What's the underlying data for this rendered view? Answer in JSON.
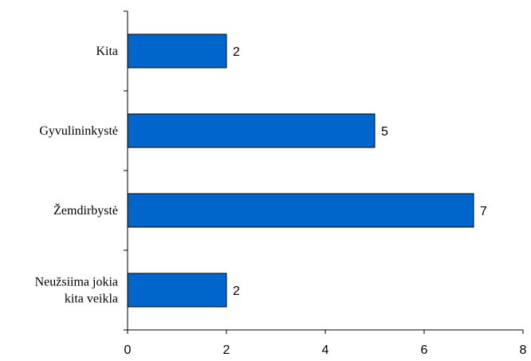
{
  "chart_data": {
    "type": "bar",
    "orientation": "horizontal",
    "categories": [
      "Kita",
      "Gyvulininkystė",
      "Žemdirbystė",
      "Neužsiima jokia kita veikla"
    ],
    "category_lines": [
      [
        "Kita"
      ],
      [
        "Gyvulininkystė"
      ],
      [
        "Žemdirbystė"
      ],
      [
        "Neužsiima jokia",
        "kita veikla"
      ]
    ],
    "values": [
      2,
      5,
      7,
      2
    ],
    "data_labels": [
      "2",
      "5",
      "7",
      "2"
    ],
    "x_ticks": [
      0,
      2,
      4,
      6,
      8
    ],
    "x_tick_labels": [
      "0",
      "2",
      "4",
      "6",
      "8"
    ],
    "xlim": [
      0,
      8
    ],
    "bar_color": "#0066CC",
    "grid": false,
    "legend": "none"
  }
}
